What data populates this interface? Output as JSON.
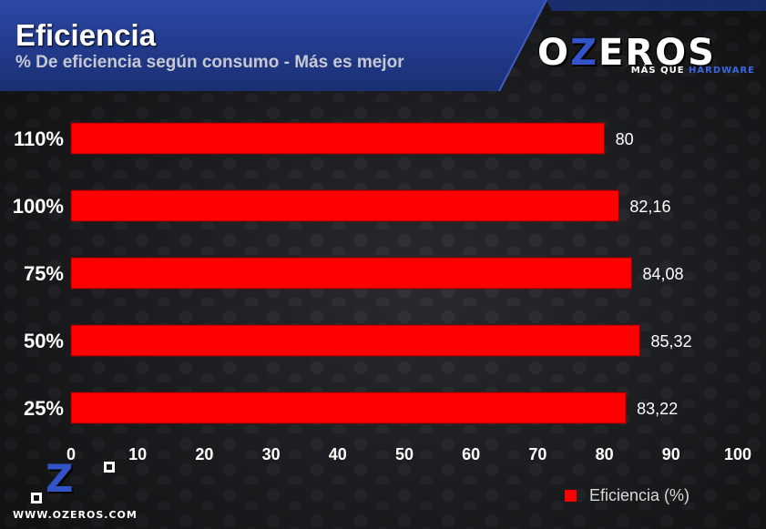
{
  "header": {
    "title": "Eficiencia",
    "subtitle": "% De eficiencia según consumo - Más es mejor"
  },
  "logo": {
    "word_left": "O",
    "word_z": "Z",
    "word_right": "EROS",
    "tag_main": "MÁS QUE",
    "tag_accent": "HARDWARE",
    "url": "WWW.OZEROS.COM"
  },
  "colors": {
    "bar": "#ff0000",
    "header_bg": "#223a8a",
    "background": "#1f2023"
  },
  "chart_data": {
    "type": "bar",
    "orientation": "horizontal",
    "title": "Eficiencia",
    "subtitle": "% De eficiencia según consumo - Más es mejor",
    "categories": [
      "110%",
      "100%",
      "75%",
      "50%",
      "25%"
    ],
    "series": [
      {
        "name": "Eficiencia (%)",
        "values": [
          80,
          82.16,
          84.08,
          85.32,
          83.22
        ],
        "labels": [
          "80",
          "82,16",
          "84,08",
          "85,32",
          "83,22"
        ]
      }
    ],
    "xlim": [
      0,
      100
    ],
    "xticks": [
      0,
      10,
      20,
      30,
      40,
      50,
      60,
      70,
      80,
      90,
      100
    ],
    "grid": false,
    "legend_position": "bottom-right"
  }
}
